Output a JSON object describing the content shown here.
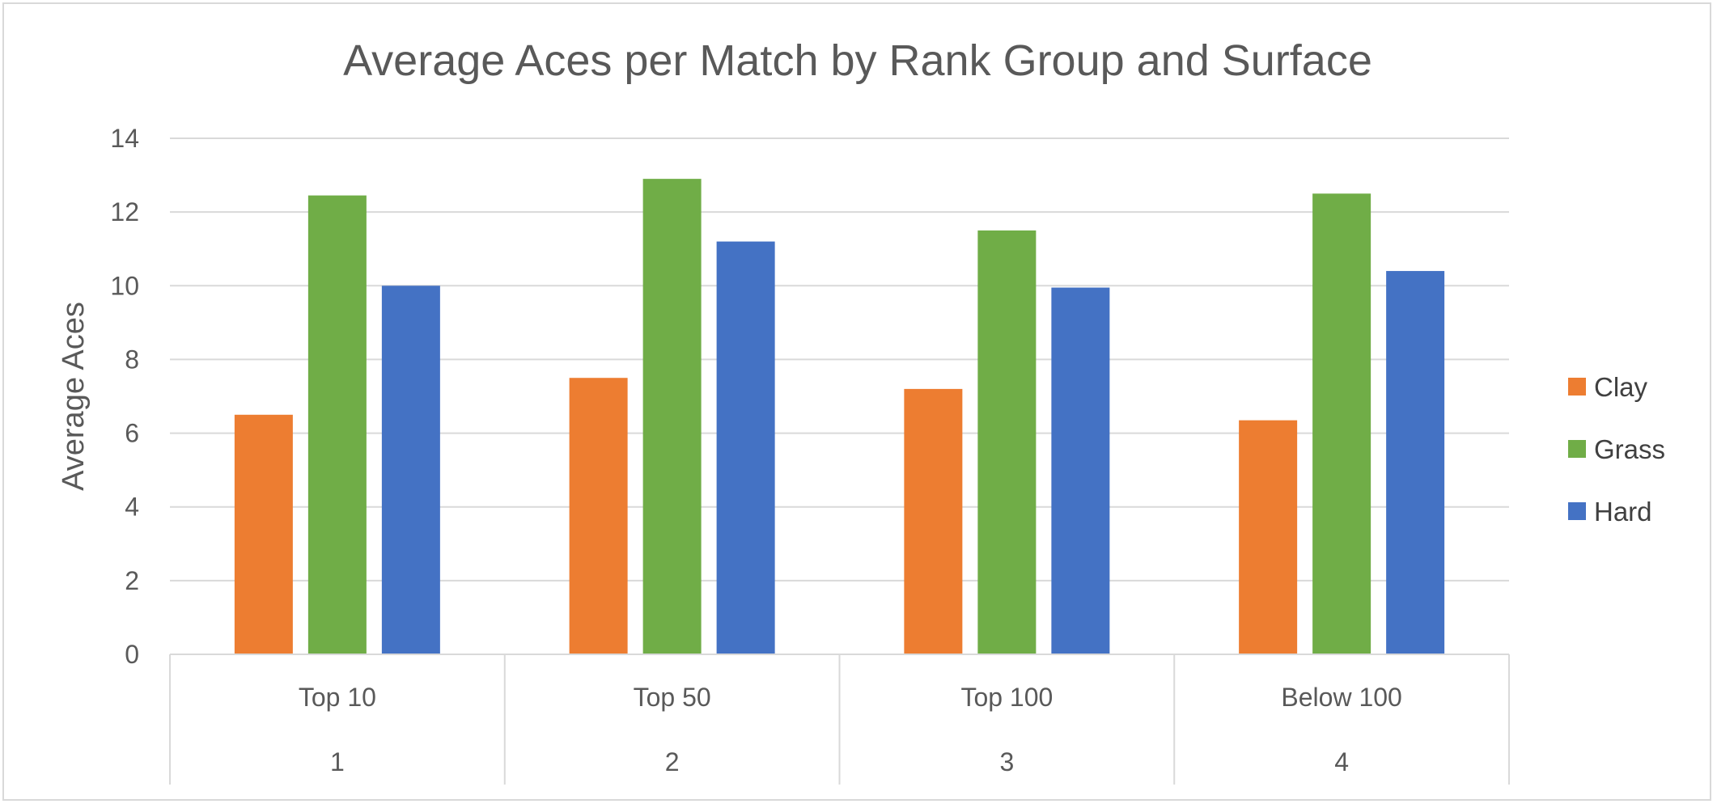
{
  "chart_data": {
    "type": "bar",
    "title": "Average Aces per Match by Rank Group and Surface",
    "xlabel": "",
    "ylabel": "Average Aces",
    "categories": [
      "Top 10",
      "Top 50",
      "Top 100",
      "Below 100"
    ],
    "category_numbers": [
      "1",
      "2",
      "3",
      "4"
    ],
    "series": [
      {
        "name": "Clay",
        "color": "#ED7D31",
        "values": [
          6.5,
          7.5,
          7.2,
          6.35
        ]
      },
      {
        "name": "Grass",
        "color": "#70AD47",
        "values": [
          12.45,
          12.9,
          11.5,
          12.5
        ]
      },
      {
        "name": "Hard",
        "color": "#4472C4",
        "values": [
          10.0,
          11.2,
          9.95,
          10.4
        ]
      }
    ],
    "ylim": [
      0,
      14
    ],
    "yticks": [
      "0",
      "2",
      "4",
      "6",
      "8",
      "10",
      "12",
      "14"
    ],
    "grid": true,
    "legend_position": "right"
  }
}
